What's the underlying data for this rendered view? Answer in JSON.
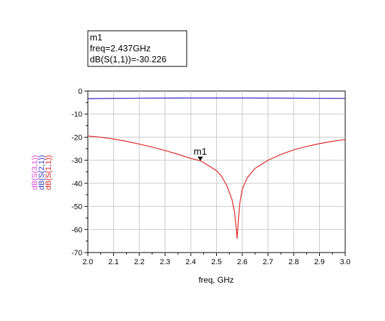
{
  "chart_data": {
    "type": "line",
    "xlabel": "freq, GHz",
    "ylim": [
      -70,
      0
    ],
    "xlim": [
      2.0,
      3.0
    ],
    "x_ticks": [
      "2.0",
      "2.1",
      "2.2",
      "2.3",
      "2.4",
      "2.5",
      "2.6",
      "2.7",
      "2.8",
      "2.9",
      "3.0"
    ],
    "y_ticks": [
      "0",
      "-10",
      "-20",
      "-30",
      "-40",
      "-50",
      "-60",
      "-70"
    ],
    "grid": true,
    "ylabel_stack": [
      {
        "text": "dB(S(3,1))",
        "color": "#d94bd6"
      },
      {
        "text": "dB(S(2,1))",
        "color": "#3333cc"
      },
      {
        "text": "dB(S(1,1))",
        "color": "#dd2222"
      }
    ],
    "series": [
      {
        "name": "dB(S(3,1))",
        "color": "#d94bd6",
        "x": [
          2.0,
          2.2,
          2.4,
          2.6,
          2.8,
          3.0
        ],
        "y": [
          -3.3,
          -3.1,
          -3.0,
          -3.0,
          -3.1,
          -3.2
        ]
      },
      {
        "name": "dB(S(2,1))",
        "color": "#3333cc",
        "x": [
          2.0,
          2.2,
          2.4,
          2.6,
          2.8,
          3.0
        ],
        "y": [
          -3.3,
          -3.1,
          -3.0,
          -3.0,
          -3.1,
          -3.2
        ]
      },
      {
        "name": "dB(S(1,1))",
        "color": "#dd2222",
        "x": [
          2.0,
          2.05,
          2.1,
          2.15,
          2.2,
          2.25,
          2.3,
          2.35,
          2.4,
          2.437,
          2.45,
          2.5,
          2.52,
          2.54,
          2.56,
          2.57,
          2.575,
          2.58,
          2.585,
          2.59,
          2.6,
          2.62,
          2.65,
          2.7,
          2.75,
          2.8,
          2.85,
          2.9,
          2.95,
          3.0
        ],
        "y": [
          -19.5,
          -20.0,
          -20.8,
          -21.8,
          -23.0,
          -24.3,
          -25.8,
          -27.4,
          -29.2,
          -30.226,
          -31.0,
          -34.5,
          -37.0,
          -41.0,
          -47.0,
          -52.5,
          -57.5,
          -64.0,
          -56.0,
          -49.0,
          -42.5,
          -37.5,
          -33.5,
          -30.0,
          -27.5,
          -25.5,
          -24.0,
          -22.8,
          -21.8,
          -21.0
        ]
      }
    ],
    "marker": {
      "name": "m1",
      "freq": 2.437,
      "value": -30.226,
      "line1": "m1",
      "line2": "freq=2.437GHz",
      "line3": "dB(S(1,1))=-30.226"
    }
  }
}
